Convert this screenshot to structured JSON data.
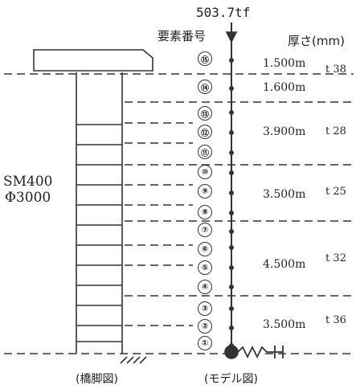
{
  "load_label": "503.7tf",
  "element_title": "要素番号",
  "thickness_title": "厚さ(mm)",
  "pier_material": "SM400",
  "pier_diameter": "Φ3000",
  "pier_caption": "(橋脚図)",
  "model_caption": "(モデル図)",
  "elements": [
    "①",
    "②",
    "③",
    "④",
    "⑤",
    "⑥",
    "⑦",
    "⑧",
    "⑨",
    "⑩",
    "⑪",
    "⑫",
    "⑬",
    "⑭",
    "⑮"
  ],
  "sections": [
    {
      "length": "1.500m",
      "thickness": "t 38"
    },
    {
      "length": "1.600m",
      "thickness": ""
    },
    {
      "length": "3.900m",
      "thickness": "t 28"
    },
    {
      "length": "3.500m",
      "thickness": "t 25"
    },
    {
      "length": "4.500m",
      "thickness": "t 32"
    },
    {
      "length": "3.500m",
      "thickness": "t 36"
    }
  ],
  "colors": {
    "ink": "#333333",
    "paper": "#ffffff"
  }
}
